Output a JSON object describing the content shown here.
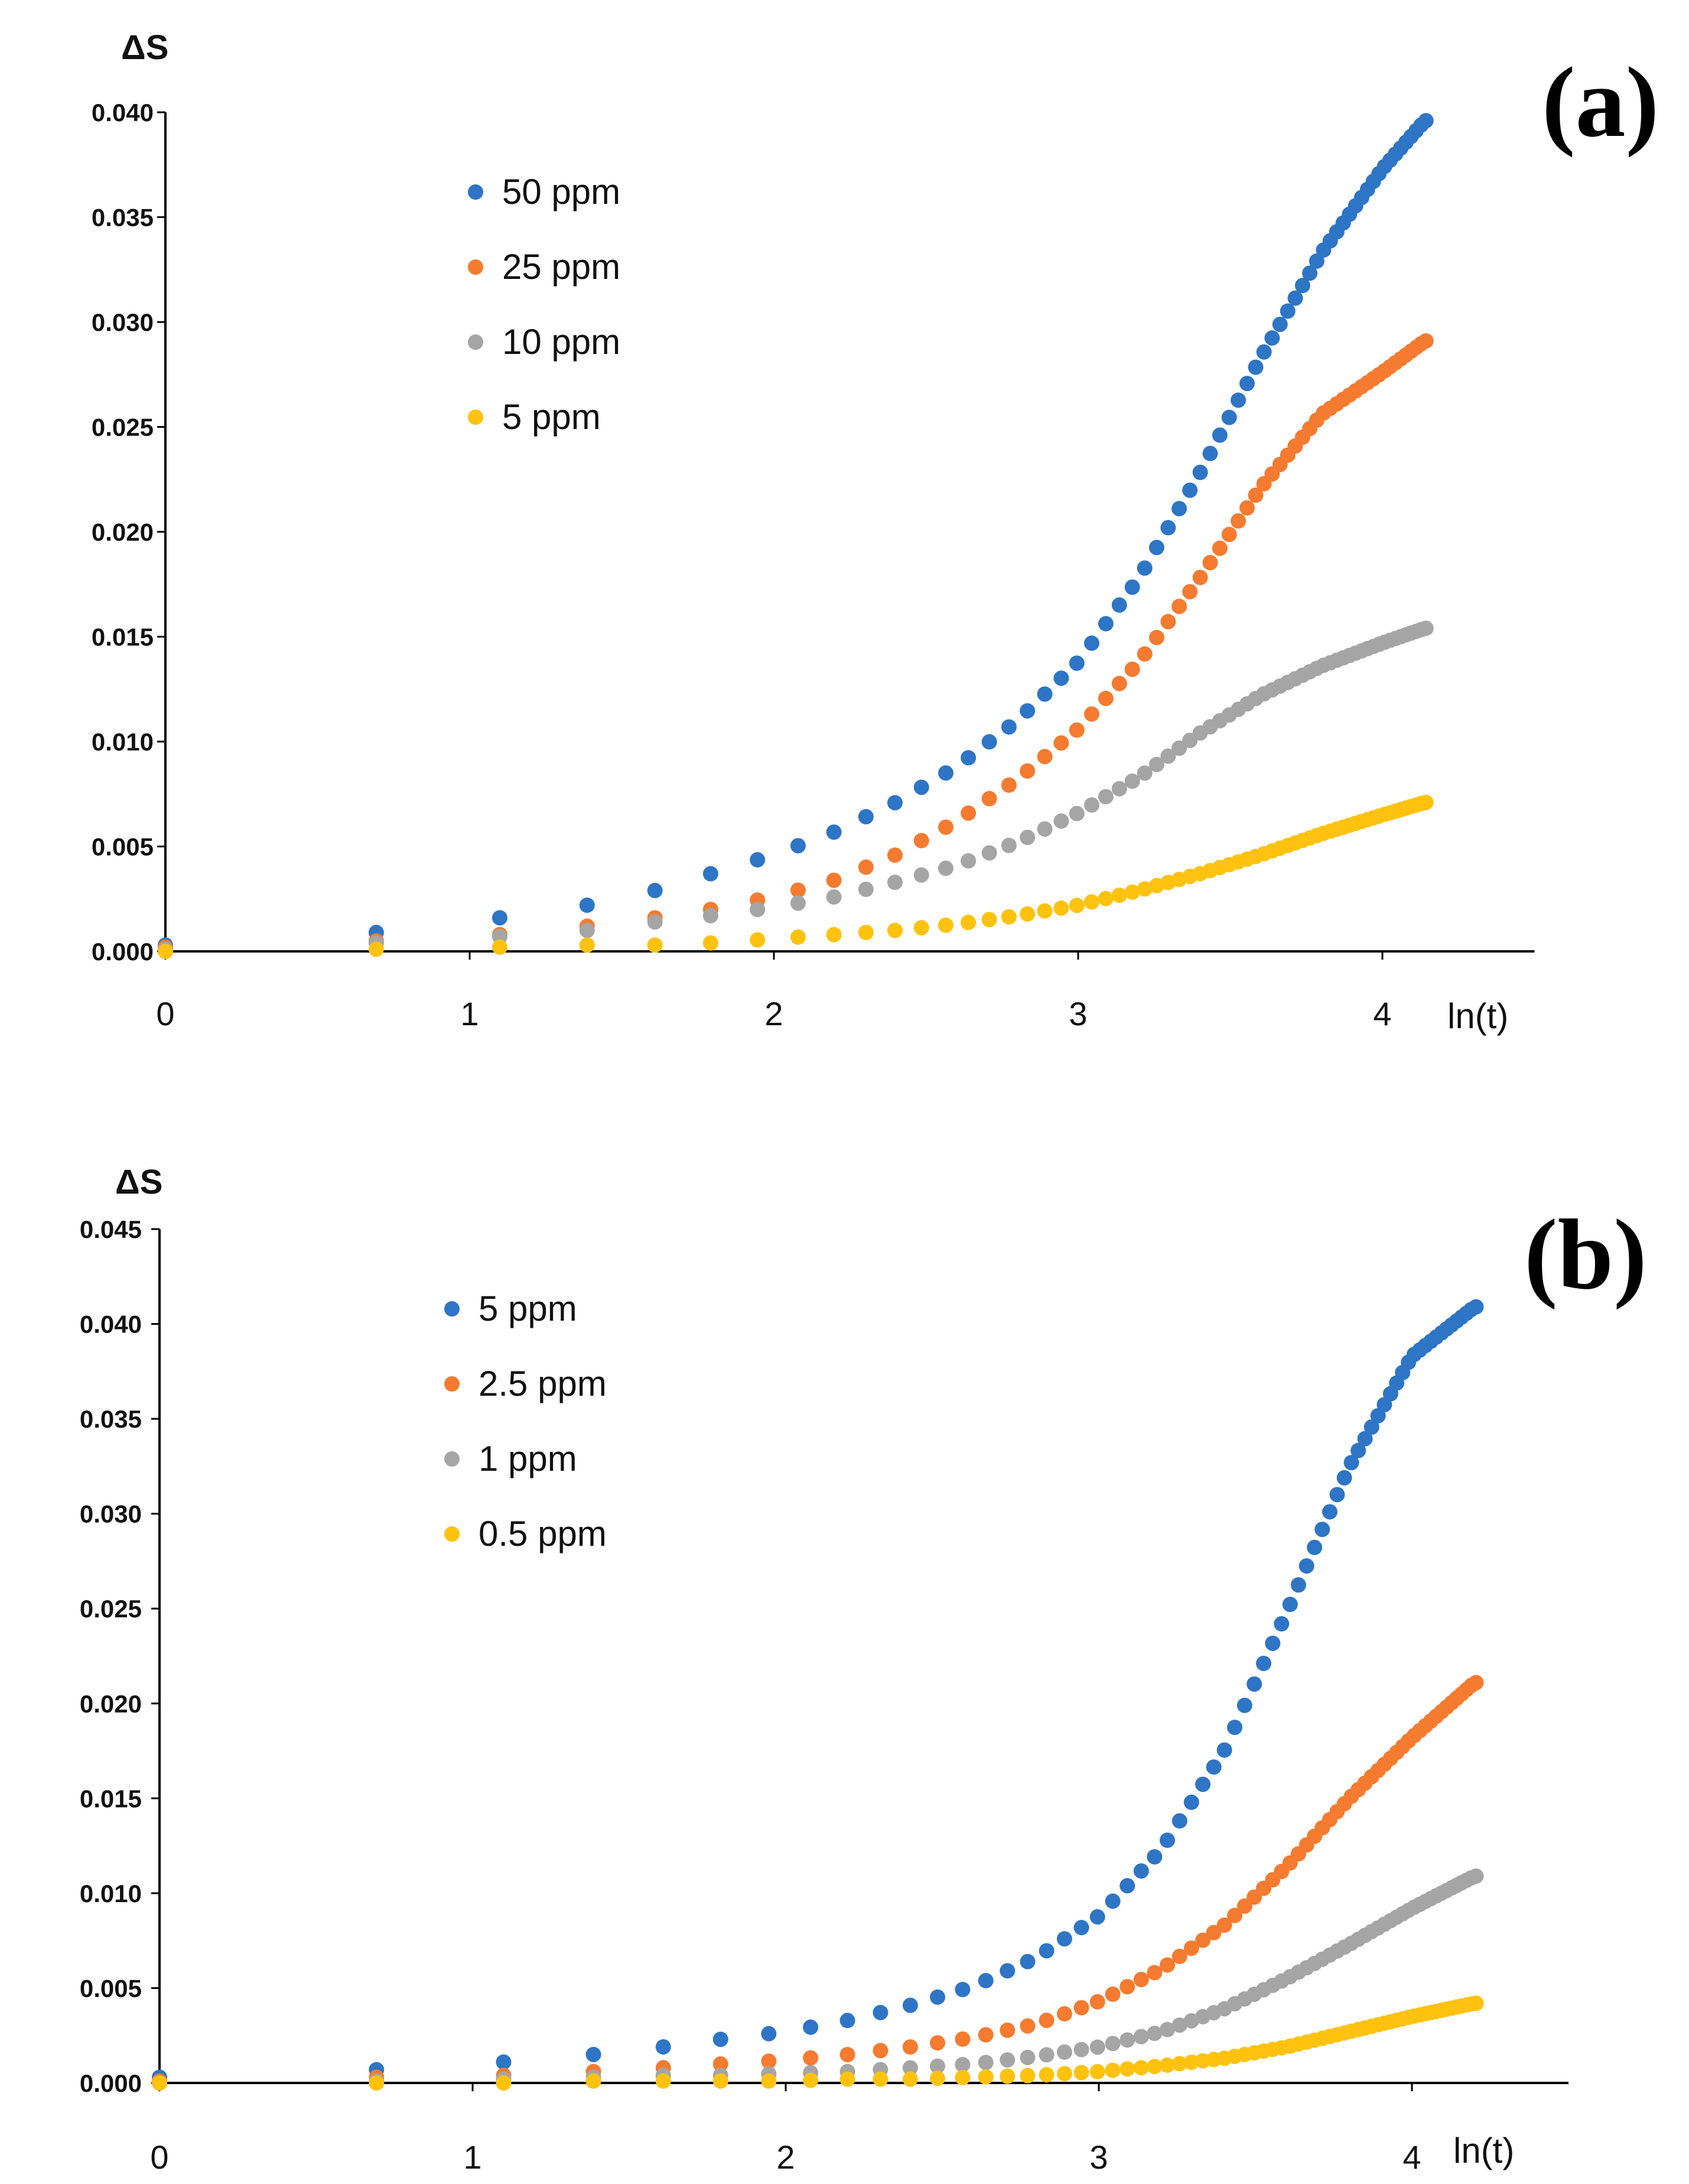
{
  "colors": {
    "blue": "#2e75c5",
    "orange": "#f47b30",
    "gray": "#a5a5a5",
    "yellow": "#ffc20e",
    "axis": "#000000"
  },
  "chart_data": [
    {
      "type": "scatter",
      "panel_label": "(a)",
      "ylabel": "ΔS",
      "xlabel": "ln(t)",
      "xlim": [
        0,
        4.5
      ],
      "ylim": [
        0,
        0.04
      ],
      "x_ticks": [
        "0",
        "1",
        "2",
        "3",
        "4"
      ],
      "y_ticks": [
        "0.000",
        "0.005",
        "0.010",
        "0.015",
        "0.020",
        "0.025",
        "0.030",
        "0.035",
        "0.040"
      ],
      "x_max_ln_t": 4.14,
      "legend_position": "top-left",
      "series": [
        {
          "name": "50 ppm",
          "color": "#2e75c5",
          "points": [
            [
              0,
              0.0003
            ],
            [
              0.693,
              0.0009
            ],
            [
              1.099,
              0.0016
            ],
            [
              1.386,
              0.0022
            ],
            [
              1.609,
              0.0029
            ],
            [
              1.792,
              0.0037
            ],
            [
              2.0,
              0.0046
            ],
            [
              2.2,
              0.0057
            ],
            [
              2.4,
              0.0071
            ],
            [
              2.6,
              0.0088
            ],
            [
              2.8,
              0.011
            ],
            [
              3.0,
              0.0138
            ],
            [
              3.2,
              0.0178
            ],
            [
              3.4,
              0.0228
            ],
            [
              3.6,
              0.0283
            ],
            [
              3.8,
              0.0333
            ],
            [
              4.0,
              0.0373
            ],
            [
              4.14,
              0.0396
            ]
          ]
        },
        {
          "name": "25 ppm",
          "color": "#f47b30",
          "points": [
            [
              0,
              0.0002
            ],
            [
              0.693,
              0.0005
            ],
            [
              1.099,
              0.0008
            ],
            [
              1.386,
              0.0012
            ],
            [
              1.609,
              0.0016
            ],
            [
              1.792,
              0.002
            ],
            [
              2.0,
              0.0026
            ],
            [
              2.2,
              0.0034
            ],
            [
              2.4,
              0.0046
            ],
            [
              2.6,
              0.0062
            ],
            [
              2.8,
              0.0082
            ],
            [
              3.0,
              0.0106
            ],
            [
              3.2,
              0.0138
            ],
            [
              3.4,
              0.0178
            ],
            [
              3.6,
              0.0221
            ],
            [
              3.8,
              0.0256
            ],
            [
              4.0,
              0.0276
            ],
            [
              4.14,
              0.0291
            ]
          ]
        },
        {
          "name": "10 ppm",
          "color": "#a5a5a5",
          "points": [
            [
              0,
              0.0001
            ],
            [
              0.693,
              0.0004
            ],
            [
              1.099,
              0.0007
            ],
            [
              1.386,
              0.001
            ],
            [
              1.609,
              0.0014
            ],
            [
              1.792,
              0.0017
            ],
            [
              2.0,
              0.0021
            ],
            [
              2.2,
              0.0026
            ],
            [
              2.4,
              0.0033
            ],
            [
              2.6,
              0.0041
            ],
            [
              2.8,
              0.0052
            ],
            [
              3.0,
              0.0066
            ],
            [
              3.2,
              0.0083
            ],
            [
              3.4,
              0.0104
            ],
            [
              3.6,
              0.0122
            ],
            [
              3.8,
              0.0136
            ],
            [
              4.0,
              0.0147
            ],
            [
              4.14,
              0.0154
            ]
          ]
        },
        {
          "name": "5 ppm",
          "color": "#ffc20e",
          "points": [
            [
              0,
              0.0
            ],
            [
              0.693,
              0.0001
            ],
            [
              1.099,
              0.0002
            ],
            [
              1.386,
              0.0003
            ],
            [
              1.609,
              0.0003
            ],
            [
              1.792,
              0.0004
            ],
            [
              2.0,
              0.0006
            ],
            [
              2.2,
              0.0008
            ],
            [
              2.4,
              0.001
            ],
            [
              2.6,
              0.0013
            ],
            [
              2.8,
              0.0017
            ],
            [
              3.0,
              0.0022
            ],
            [
              3.2,
              0.0029
            ],
            [
              3.4,
              0.0037
            ],
            [
              3.6,
              0.0046
            ],
            [
              3.8,
              0.0056
            ],
            [
              4.0,
              0.0065
            ],
            [
              4.14,
              0.0071
            ]
          ]
        }
      ]
    },
    {
      "type": "scatter",
      "panel_label": "(b)",
      "ylabel": "ΔS",
      "xlabel": "ln(t)",
      "xlim": [
        0,
        4.5
      ],
      "ylim": [
        0,
        0.045
      ],
      "x_ticks": [
        "0",
        "1",
        "2",
        "3",
        "4"
      ],
      "y_ticks": [
        "0.000",
        "0.005",
        "0.010",
        "0.015",
        "0.020",
        "0.025",
        "0.030",
        "0.035",
        "0.040",
        "0.045"
      ],
      "x_max_ln_t": 4.2,
      "legend_position": "top-left",
      "series": [
        {
          "name": "5 ppm",
          "color": "#2e75c5",
          "points": [
            [
              0,
              0.0003
            ],
            [
              0.693,
              0.0007
            ],
            [
              1.099,
              0.0011
            ],
            [
              1.386,
              0.0015
            ],
            [
              1.609,
              0.0019
            ],
            [
              1.792,
              0.0023
            ],
            [
              2.0,
              0.0027
            ],
            [
              2.2,
              0.0033
            ],
            [
              2.4,
              0.0041
            ],
            [
              2.6,
              0.0051
            ],
            [
              2.8,
              0.0066
            ],
            [
              3.0,
              0.0088
            ],
            [
              3.2,
              0.0123
            ],
            [
              3.4,
              0.0175
            ],
            [
              3.6,
              0.0248
            ],
            [
              3.8,
              0.0325
            ],
            [
              4.0,
              0.0383
            ],
            [
              4.2,
              0.0409
            ]
          ]
        },
        {
          "name": "2.5 ppm",
          "color": "#f47b30",
          "points": [
            [
              0,
              0.0001
            ],
            [
              0.693,
              0.0003
            ],
            [
              1.099,
              0.0004
            ],
            [
              1.386,
              0.0006
            ],
            [
              1.609,
              0.0008
            ],
            [
              1.792,
              0.001
            ],
            [
              2.0,
              0.0012
            ],
            [
              2.2,
              0.0015
            ],
            [
              2.4,
              0.0019
            ],
            [
              2.6,
              0.0024
            ],
            [
              2.8,
              0.0031
            ],
            [
              3.0,
              0.0043
            ],
            [
              3.2,
              0.006
            ],
            [
              3.4,
              0.0083
            ],
            [
              3.6,
              0.0114
            ],
            [
              3.8,
              0.015
            ],
            [
              4.0,
              0.0182
            ],
            [
              4.2,
              0.0211
            ]
          ]
        },
        {
          "name": "1 ppm",
          "color": "#a5a5a5",
          "points": [
            [
              0,
              0.0
            ],
            [
              0.693,
              0.0001
            ],
            [
              1.099,
              0.0002
            ],
            [
              1.386,
              0.0003
            ],
            [
              1.609,
              0.0004
            ],
            [
              1.792,
              0.0004
            ],
            [
              2.0,
              0.0005
            ],
            [
              2.2,
              0.0006
            ],
            [
              2.4,
              0.0008
            ],
            [
              2.6,
              0.001
            ],
            [
              2.8,
              0.0014
            ],
            [
              3.0,
              0.0019
            ],
            [
              3.2,
              0.0027
            ],
            [
              3.4,
              0.0039
            ],
            [
              3.6,
              0.0055
            ],
            [
              3.8,
              0.0073
            ],
            [
              4.0,
              0.0092
            ],
            [
              4.2,
              0.0109
            ]
          ]
        },
        {
          "name": "0.5 ppm",
          "color": "#ffc20e",
          "points": [
            [
              0,
              0.0
            ],
            [
              0.693,
              0.0
            ],
            [
              1.099,
              0.0
            ],
            [
              1.386,
              0.0001
            ],
            [
              1.609,
              0.0001
            ],
            [
              1.792,
              0.0001
            ],
            [
              2.0,
              0.0001
            ],
            [
              2.2,
              0.0002
            ],
            [
              2.4,
              0.0002
            ],
            [
              2.6,
              0.0003
            ],
            [
              2.8,
              0.0004
            ],
            [
              3.0,
              0.0006
            ],
            [
              3.2,
              0.0009
            ],
            [
              3.4,
              0.0013
            ],
            [
              3.6,
              0.0019
            ],
            [
              3.8,
              0.0027
            ],
            [
              4.0,
              0.0035
            ],
            [
              4.2,
              0.0042
            ]
          ]
        }
      ]
    }
  ]
}
